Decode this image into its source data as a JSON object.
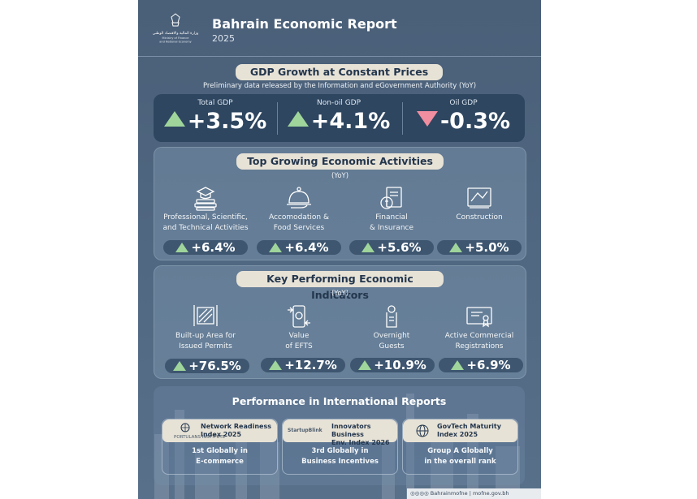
{
  "header": {
    "title": "Bahrain Economic Report",
    "year": "2025",
    "logo_caption": "Ministry of Finance and National Economy"
  },
  "gdp": {
    "pill": "GDP Growth at Constant Prices",
    "subtitle": "Preliminary data released by the Information and eGovernment Authority (YoY)",
    "items": [
      {
        "label": "Total GDP",
        "value": "+3.5%",
        "trend": "up"
      },
      {
        "label": "Non-oil GDP",
        "value": "+4.1%",
        "trend": "up"
      },
      {
        "label": "Oil GDP",
        "value": "-0.3%",
        "trend": "down"
      }
    ]
  },
  "activities": {
    "pill": "Top Growing Economic Activities",
    "yoy": "(YoY)",
    "items": [
      {
        "label": "Professional, Scientific,\nand Technical Activities",
        "value": "+6.4%",
        "icon": "books-graduation-cap-icon"
      },
      {
        "label": "Accomodation &\nFood Services",
        "value": "+6.4%",
        "icon": "serving-cloche-icon"
      },
      {
        "label": "Financial\n& Insurance",
        "value": "+5.6%",
        "icon": "money-document-icon"
      },
      {
        "label": "Construction",
        "value": "+5.0%",
        "icon": "blueprint-tools-icon"
      }
    ]
  },
  "indicators": {
    "pill": "Key Performing Economic Indicators",
    "yoy": "(YoY)",
    "items": [
      {
        "label": "Built-up Area for\nIssued Permits",
        "value": "+76.5%",
        "icon": "area-measure-icon"
      },
      {
        "label": "Value\nof EFTS",
        "value": "+12.7%",
        "icon": "phone-transfer-icon"
      },
      {
        "label": "Overnight\nGuests",
        "value": "+10.9%",
        "icon": "door-hanger-icon"
      },
      {
        "label": "Active Commercial\nRegistrations",
        "value": "+6.9%",
        "icon": "certificate-icon"
      }
    ]
  },
  "international": {
    "title": "Performance in International Reports",
    "cards": [
      {
        "name": "Network Readiness\nIndex 2025",
        "logo": "PORTULANS INSTITUTE",
        "result_line1": "1st Globally in",
        "result_line2": "E-commerce"
      },
      {
        "name": "Innovators Business\nEnv. Index 2026",
        "logo": "StartupBlink",
        "result_line1": "3rd Globally in",
        "result_line2": "Business Incentives"
      },
      {
        "name": "GovTech Maturity\nIndex 2025",
        "logo": "",
        "result_line1": "Group A Globally",
        "result_line2": "in the overall rank"
      }
    ]
  },
  "footer": {
    "handle": "Bahrainmofne",
    "site": "mofne.gov.bh"
  },
  "colors": {
    "up": "#9fd59b",
    "down": "#f18ea0",
    "pill": "#e7e2d6",
    "background": "#4f6680"
  }
}
